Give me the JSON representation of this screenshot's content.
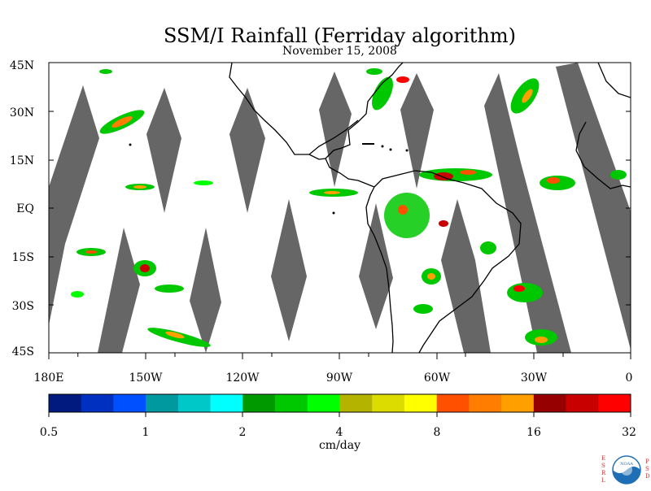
{
  "title": "SSM/I Rainfall (Ferriday algorithm)",
  "subtitle": "November 15, 2008",
  "lat_labels": [
    "45N",
    "30N",
    "15N",
    "EQ",
    "15S",
    "30S",
    "45S"
  ],
  "lon_labels": [
    "180E",
    "150W",
    "120W",
    "90W",
    "60W",
    "30W",
    "0"
  ],
  "colorbar": {
    "colors": [
      "#001a80",
      "#0030c0",
      "#0050ff",
      "#00999f",
      "#00c8c8",
      "#00ffff",
      "#009a00",
      "#00c800",
      "#00ff00",
      "#b4b400",
      "#dcdc00",
      "#ffff00",
      "#ff5000",
      "#ff7d00",
      "#ffa000",
      "#960000",
      "#c80000",
      "#ff0000"
    ],
    "labels": [
      "0.5",
      "1",
      "2",
      "4",
      "8",
      "16",
      "32"
    ],
    "units": "cm/day"
  },
  "logo": {
    "letters_left": [
      "E",
      "S",
      "R",
      "L"
    ],
    "letters_right": [
      "P",
      "S",
      "D"
    ],
    "center": "NOAA"
  },
  "legend_colors": {
    "swath_gap": "#666666",
    "land_outline": "#000000"
  }
}
